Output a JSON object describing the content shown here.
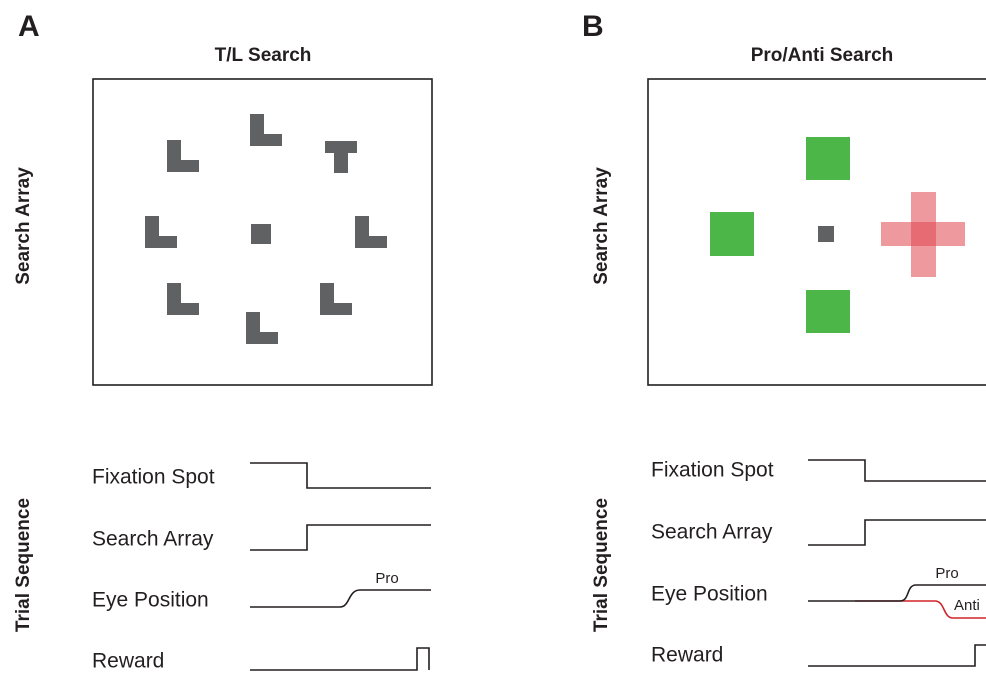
{
  "panels": [
    {
      "label": "A",
      "title": "T/L Search",
      "array_label": "Search Array",
      "sequence_label": "Trial Sequence",
      "traces": [
        "Fixation Spot",
        "Search Array",
        "Eye Position",
        "Reward"
      ],
      "eye_labels": [
        "Pro"
      ]
    },
    {
      "label": "B",
      "title": "Pro/Anti Search",
      "array_label": "Search Array",
      "sequence_label": "Trial Sequence",
      "traces": [
        "Fixation Spot",
        "Search Array",
        "Eye Position",
        "Reward"
      ],
      "eye_labels": [
        "Pro",
        "Anti"
      ]
    }
  ]
}
